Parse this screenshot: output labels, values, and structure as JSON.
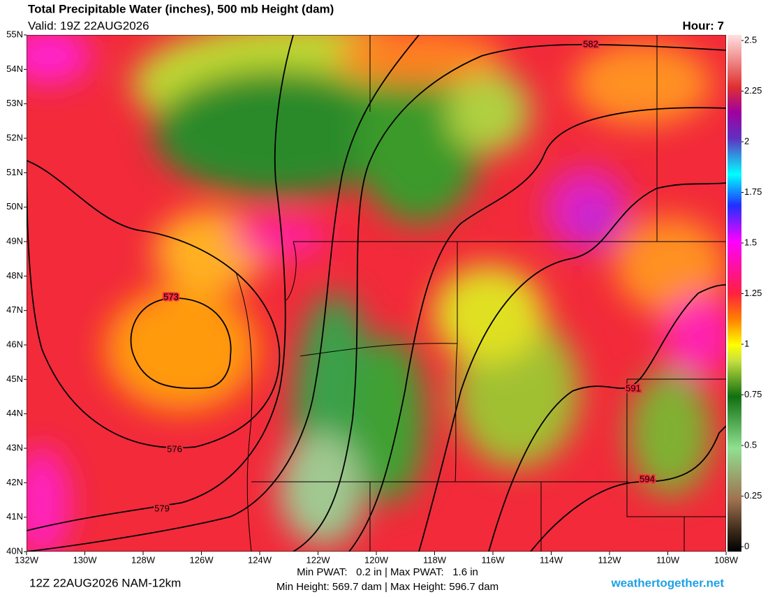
{
  "title": "Total Precipitable Water (inches), 500 mb Height (dam)",
  "valid": "Valid: 19Z 22AUG2026",
  "hour": "Hour: 7",
  "map": {
    "xlim": [
      -132,
      -108
    ],
    "ylim": [
      40,
      55
    ],
    "xticks": [
      {
        "value": -132,
        "label": "132W"
      },
      {
        "value": -130,
        "label": "130W"
      },
      {
        "value": -128,
        "label": "128W"
      },
      {
        "value": -126,
        "label": "126W"
      },
      {
        "value": -124,
        "label": "124W"
      },
      {
        "value": -122,
        "label": "122W"
      },
      {
        "value": -120,
        "label": "120W"
      },
      {
        "value": -118,
        "label": "118W"
      },
      {
        "value": -116,
        "label": "116W"
      },
      {
        "value": -114,
        "label": "114W"
      },
      {
        "value": -112,
        "label": "112W"
      },
      {
        "value": -110,
        "label": "110W"
      },
      {
        "value": -108,
        "label": "108W"
      }
    ],
    "yticks": [
      {
        "value": 40,
        "label": "40N"
      },
      {
        "value": 41,
        "label": "41N"
      },
      {
        "value": 42,
        "label": "42N"
      },
      {
        "value": 43,
        "label": "43N"
      },
      {
        "value": 44,
        "label": "44N"
      },
      {
        "value": 45,
        "label": "45N"
      },
      {
        "value": 46,
        "label": "46N"
      },
      {
        "value": 47,
        "label": "47N"
      },
      {
        "value": 48,
        "label": "48N"
      },
      {
        "value": 49,
        "label": "49N"
      },
      {
        "value": 50,
        "label": "50N"
      },
      {
        "value": 51,
        "label": "51N"
      },
      {
        "value": 52,
        "label": "52N"
      },
      {
        "value": 53,
        "label": "53N"
      },
      {
        "value": 54,
        "label": "54N"
      },
      {
        "value": 55,
        "label": "55N"
      }
    ]
  },
  "contour_labels": [
    573,
    576,
    579,
    582,
    591,
    594
  ],
  "colorbar": {
    "lim": [
      0,
      2.5
    ],
    "ticks": [
      0,
      0.25,
      0.5,
      0.75,
      1,
      1.25,
      1.5,
      1.75,
      2,
      2.25,
      2.5
    ]
  },
  "footer": {
    "run": "12Z 22AUG2026 NAM-12km",
    "pwat": "Min PWAT:   0.2 in | Max PWAT:   1.6 in",
    "height": "Min Height: 569.7 dam | Max Height: 596.7 dam",
    "site": "weathertogether.net"
  }
}
